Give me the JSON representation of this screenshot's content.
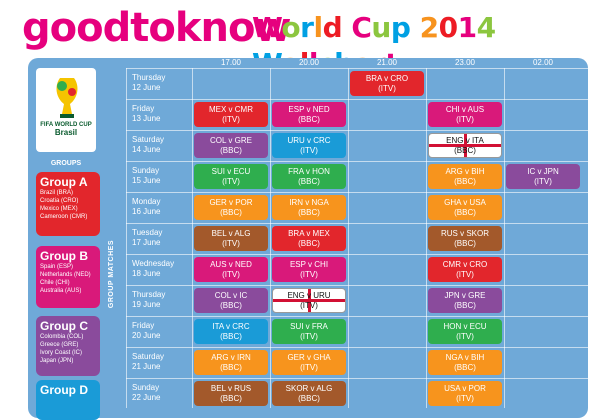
{
  "header": {
    "brand": "goodtoknow",
    "title": "World Cup 2014 Wallchart",
    "brand_colors": [
      "#e6007e",
      "#8cc63f",
      "#00a0e3",
      "#f7931e",
      "#ed1c24"
    ]
  },
  "logo": {
    "text_line1": "FIFA WORLD CUP",
    "text_line2": "Brasil"
  },
  "sidebar": {
    "groups_label": "GROUPS",
    "groups": [
      {
        "title": "Group A",
        "color": "#e2262c",
        "teams": [
          "Brazil (BRA)",
          "Croatia (CRO)",
          "Mexico (MEX)",
          "Cameroon (CMR)"
        ]
      },
      {
        "title": "Group B",
        "color": "#d9197a",
        "teams": [
          "Spain (ESP)",
          "Netherlands (NED)",
          "Chile (CHI)",
          "Australia (AUS)"
        ]
      },
      {
        "title": "Group C",
        "color": "#8a4b9c",
        "teams": [
          "Colombia (COL)",
          "Greece (GRE)",
          "Ivory Coast (IC)",
          "Japan (JPN)"
        ]
      },
      {
        "title": "Group D",
        "color": "#1a9bd7",
        "teams": []
      }
    ]
  },
  "side_label": "GROUP MATCHES",
  "times": [
    "17.00",
    "20.00",
    "21.00",
    "23.00",
    "02.00"
  ],
  "days": [
    {
      "day": "Thursday",
      "date": "12 June"
    },
    {
      "day": "Friday",
      "date": "13 June"
    },
    {
      "day": "Saturday",
      "date": "14 June"
    },
    {
      "day": "Sunday",
      "date": "15 June"
    },
    {
      "day": "Monday",
      "date": "16 June"
    },
    {
      "day": "Tuesday",
      "date": "17 June"
    },
    {
      "day": "Wednesday",
      "date": "18 June"
    },
    {
      "day": "Thursday",
      "date": "19 June"
    },
    {
      "day": "Friday",
      "date": "20 June"
    },
    {
      "day": "Saturday",
      "date": "21 June"
    },
    {
      "day": "Sunday",
      "date": "22 June"
    }
  ],
  "matches": [
    {
      "row": 0,
      "col": 2,
      "teams": "BRA v CRO",
      "ch": "(ITV)",
      "color": "#e2262c"
    },
    {
      "row": 1,
      "col": 0,
      "teams": "MEX v CMR",
      "ch": "(ITV)",
      "color": "#e2262c"
    },
    {
      "row": 1,
      "col": 1,
      "teams": "ESP v NED",
      "ch": "(BBC)",
      "color": "#d9197a"
    },
    {
      "row": 1,
      "col": 3,
      "teams": "CHI v AUS",
      "ch": "(ITV)",
      "color": "#d9197a"
    },
    {
      "row": 2,
      "col": 0,
      "teams": "COL v GRE",
      "ch": "(BBC)",
      "color": "#8a4b9c"
    },
    {
      "row": 2,
      "col": 1,
      "teams": "URU v CRC",
      "ch": "(ITV)",
      "color": "#1a9bd7"
    },
    {
      "row": 2,
      "col": 3,
      "teams": "ENG v ITA",
      "ch": "(BBC)",
      "color": "eng"
    },
    {
      "row": 3,
      "col": 0,
      "teams": "SUI v ECU",
      "ch": "(ITV)",
      "color": "#2fae4e"
    },
    {
      "row": 3,
      "col": 1,
      "teams": "FRA v HON",
      "ch": "(BBC)",
      "color": "#2fae4e"
    },
    {
      "row": 3,
      "col": 3,
      "teams": "ARG v BIH",
      "ch": "(BBC)",
      "color": "#f7941d"
    },
    {
      "row": 3,
      "col": 4,
      "teams": "IC v JPN",
      "ch": "(ITV)",
      "color": "#8a4b9c"
    },
    {
      "row": 4,
      "col": 0,
      "teams": "GER v POR",
      "ch": "(BBC)",
      "color": "#f7941d"
    },
    {
      "row": 4,
      "col": 1,
      "teams": "IRN v NGA",
      "ch": "(BBC)",
      "color": "#f7941d"
    },
    {
      "row": 4,
      "col": 3,
      "teams": "GHA v USA",
      "ch": "(BBC)",
      "color": "#f7941d"
    },
    {
      "row": 5,
      "col": 0,
      "teams": "BEL v ALG",
      "ch": "(ITV)",
      "color": "#a3592b"
    },
    {
      "row": 5,
      "col": 1,
      "teams": "BRA v MEX",
      "ch": "(BBC)",
      "color": "#e2262c"
    },
    {
      "row": 5,
      "col": 3,
      "teams": "RUS v SKOR",
      "ch": "(BBC)",
      "color": "#a3592b"
    },
    {
      "row": 6,
      "col": 0,
      "teams": "AUS v NED",
      "ch": "(ITV)",
      "color": "#d9197a"
    },
    {
      "row": 6,
      "col": 1,
      "teams": "ESP v CHI",
      "ch": "(ITV)",
      "color": "#d9197a"
    },
    {
      "row": 6,
      "col": 3,
      "teams": "CMR v CRO",
      "ch": "(ITV)",
      "color": "#e2262c"
    },
    {
      "row": 7,
      "col": 0,
      "teams": "COL v IC",
      "ch": "(BBC)",
      "color": "#8a4b9c"
    },
    {
      "row": 7,
      "col": 1,
      "teams": "ENG v URU",
      "ch": "(ITV)",
      "color": "eng"
    },
    {
      "row": 7,
      "col": 3,
      "teams": "JPN v GRE",
      "ch": "(BBC)",
      "color": "#8a4b9c"
    },
    {
      "row": 8,
      "col": 0,
      "teams": "ITA v CRC",
      "ch": "(BBC)",
      "color": "#1a9bd7"
    },
    {
      "row": 8,
      "col": 1,
      "teams": "SUI v FRA",
      "ch": "(ITV)",
      "color": "#2fae4e"
    },
    {
      "row": 8,
      "col": 3,
      "teams": "HON v ECU",
      "ch": "(ITV)",
      "color": "#2fae4e"
    },
    {
      "row": 9,
      "col": 0,
      "teams": "ARG v IRN",
      "ch": "(BBC)",
      "color": "#f7941d"
    },
    {
      "row": 9,
      "col": 1,
      "teams": "GER v GHA",
      "ch": "(ITV)",
      "color": "#f7941d"
    },
    {
      "row": 9,
      "col": 3,
      "teams": "NGA v BIH",
      "ch": "(BBC)",
      "color": "#f7941d"
    },
    {
      "row": 10,
      "col": 0,
      "teams": "BEL v RUS",
      "ch": "(BBC)",
      "color": "#a3592b"
    },
    {
      "row": 10,
      "col": 1,
      "teams": "SKOR v ALG",
      "ch": "(BBC)",
      "color": "#a3592b"
    },
    {
      "row": 10,
      "col": 3,
      "teams": "USA v POR",
      "ch": "(ITV)",
      "color": "#f7941d"
    }
  ]
}
